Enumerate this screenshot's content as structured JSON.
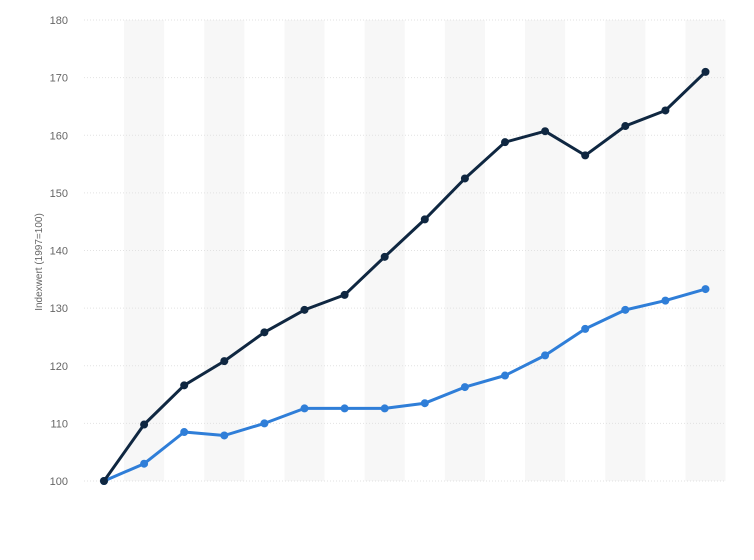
{
  "chart_data": {
    "type": "line",
    "title": "",
    "xlabel": "",
    "ylabel": "Indexwert (1997=100)",
    "ylim": [
      100,
      180
    ],
    "yticks": [
      100,
      110,
      120,
      130,
      140,
      150,
      160,
      170,
      180
    ],
    "grid": true,
    "legend": "none",
    "x_count": 16,
    "series": [
      {
        "color": "#0f2741",
        "values": [
          100,
          109.8,
          116.6,
          120.8,
          125.8,
          129.7,
          132.3,
          138.9,
          145.4,
          152.5,
          158.8,
          160.7,
          156.5,
          161.6,
          164.3,
          171.0
        ]
      },
      {
        "color": "#2f7ed8",
        "values": [
          100,
          103.0,
          108.5,
          107.9,
          110.0,
          112.6,
          112.6,
          112.6,
          113.5,
          116.3,
          118.3,
          121.8,
          126.4,
          129.7,
          131.3,
          133.3
        ]
      }
    ]
  }
}
